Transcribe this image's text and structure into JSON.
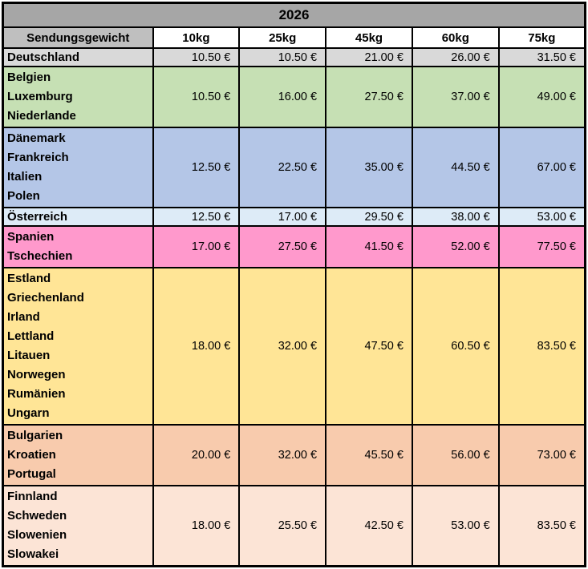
{
  "title": "2026",
  "header": {
    "weight_label": "Sendungsgewicht",
    "columns": [
      "10kg",
      "25kg",
      "45kg",
      "60kg",
      "75kg"
    ]
  },
  "currency_suffix": " €",
  "colors": {
    "title_bg": "#A6A6A6",
    "weight_label_bg": "#BFBFBF",
    "weight_col_bg": "#FFFFFF",
    "border": "#000000"
  },
  "groups": [
    {
      "countries": [
        "Deutschland"
      ],
      "color": "#D9D9D9",
      "single": true,
      "prices": [
        "10.50 €",
        "10.50 €",
        "21.00 €",
        "26.00 €",
        "31.50 €"
      ]
    },
    {
      "countries": [
        "Belgien",
        "Luxemburg",
        "Niederlande"
      ],
      "color": "#C6E0B4",
      "single": false,
      "prices": [
        "10.50 €",
        "16.00 €",
        "27.50 €",
        "37.00 €",
        "49.00 €"
      ]
    },
    {
      "countries": [
        "Dänemark",
        "Frankreich",
        "Italien",
        "Polen"
      ],
      "color": "#B4C6E7",
      "single": false,
      "prices": [
        "12.50 €",
        "22.50 €",
        "35.00 €",
        "44.50 €",
        "67.00 €"
      ]
    },
    {
      "countries": [
        "Österreich"
      ],
      "color": "#DDEBF7",
      "single": true,
      "prices": [
        "12.50 €",
        "17.00 €",
        "29.50 €",
        "38.00 €",
        "53.00 €"
      ]
    },
    {
      "countries": [
        "Spanien",
        "Tschechien"
      ],
      "color": "#FF99CC",
      "single": false,
      "prices": [
        "17.00 €",
        "27.50 €",
        "41.50 €",
        "52.00 €",
        "77.50 €"
      ]
    },
    {
      "countries": [
        "Estland",
        "Griechenland",
        "Irland",
        "Lettland",
        "Litauen",
        "Norwegen",
        "Rumänien",
        "Ungarn"
      ],
      "color": "#FFE596",
      "single": false,
      "prices": [
        "18.00 €",
        "32.00 €",
        "47.50 €",
        "60.50 €",
        "83.50 €"
      ]
    },
    {
      "countries": [
        "Bulgarien",
        "Kroatien",
        "Portugal"
      ],
      "color": "#F8CBAD",
      "single": false,
      "prices": [
        "20.00 €",
        "32.00 €",
        "45.50 €",
        "56.00 €",
        "73.00 €"
      ]
    },
    {
      "countries": [
        "Finnland",
        "Schweden",
        "Slowenien",
        "Slowakei"
      ],
      "color": "#FCE4D6",
      "single": false,
      "prices": [
        "18.00 €",
        "25.50 €",
        "42.50 €",
        "53.00 €",
        "83.50 €"
      ]
    }
  ]
}
